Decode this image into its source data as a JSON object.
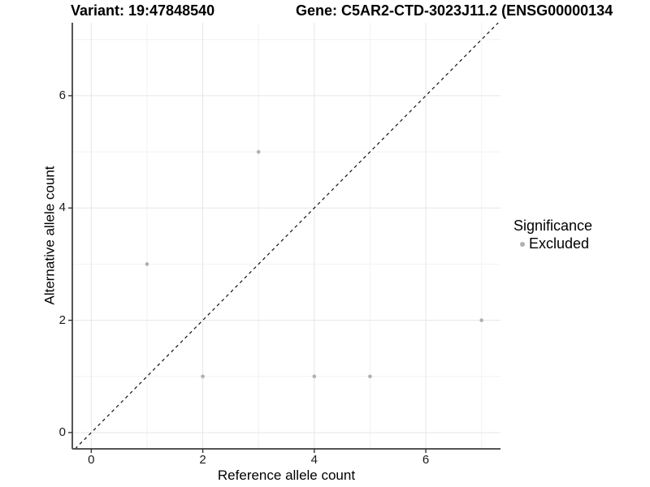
{
  "titles": {
    "variant": "Variant: 19:47848540",
    "gene": "Gene: C5AR2-CTD-3023J11.2 (ENSG00000134"
  },
  "axes": {
    "x_label": "Reference allele count",
    "y_label": "Alternative allele count"
  },
  "legend": {
    "title": "Significance",
    "items": [
      {
        "label": "Excluded",
        "color": "#b0b0b0",
        "marker": "circle-icon"
      }
    ]
  },
  "chart_data": {
    "type": "scatter",
    "title_left": "Variant: 19:47848540",
    "title_right": "Gene: C5AR2-CTD-3023J11.2 (ENSG00000134",
    "xlabel": "Reference allele count",
    "ylabel": "Alternative allele count",
    "series": [
      {
        "name": "Excluded",
        "color": "#b0b0b0",
        "points": [
          [
            1,
            3
          ],
          [
            2,
            1
          ],
          [
            3,
            5
          ],
          [
            4,
            1
          ],
          [
            5,
            1
          ],
          [
            7,
            2
          ]
        ]
      }
    ],
    "x_ticks": [
      0,
      2,
      4,
      6
    ],
    "y_ticks": [
      0,
      2,
      4,
      6
    ],
    "x_minor": [
      1,
      3,
      5,
      7
    ],
    "y_minor": [
      1,
      3,
      5,
      7
    ],
    "xlim": [
      -0.34,
      7.34
    ],
    "ylim": [
      -0.29,
      7.3
    ],
    "grid": "major+minor",
    "legend_position": "right",
    "reference_line": {
      "style": "dashed",
      "slope": 1,
      "intercept": 0,
      "color": "#111111"
    }
  },
  "colors": {
    "point": "#b0b0b0",
    "grid_major": "#e6e6e6",
    "grid_minor": "#f2f2f2",
    "axis_line": "#555555",
    "tick_mark": "#333333",
    "tick_label": "#1a1a1a",
    "background": "#ffffff"
  }
}
